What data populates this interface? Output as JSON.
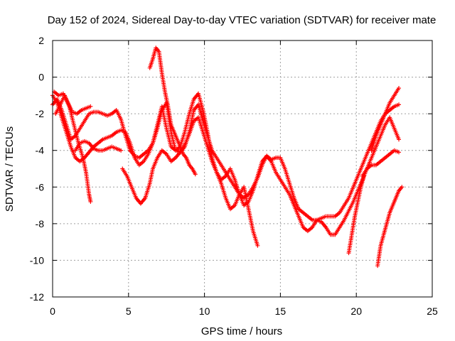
{
  "chart_data": {
    "type": "scatter",
    "title": "Day 152 of 2024, Sidereal Day-to-day VTEC variation (SDTVAR) for receiver mate",
    "xlabel": "GPS time / hours",
    "ylabel": "SDTVAR / TECUs",
    "xlim": [
      0,
      25
    ],
    "ylim": [
      -12,
      2
    ],
    "xticks": [
      0,
      5,
      10,
      15,
      20,
      25
    ],
    "yticks": [
      2,
      0,
      -2,
      -4,
      -6,
      -8,
      -10,
      -12
    ],
    "xtick_labels": [
      "0",
      "5",
      "10",
      "15",
      "20",
      "25"
    ],
    "ytick_labels": [
      "2",
      "0",
      "-2",
      "-4",
      "-6",
      "-8",
      "-10",
      "-12"
    ],
    "grid": true,
    "marker": "+",
    "color": "#ff0000",
    "series": [
      {
        "name": "track-1",
        "points": [
          [
            0.0,
            -1.5
          ],
          [
            0.3,
            -1.2
          ],
          [
            0.6,
            -1.8
          ],
          [
            0.9,
            -2.6
          ],
          [
            1.2,
            -3.4
          ],
          [
            1.5,
            -3.2
          ],
          [
            1.8,
            -2.8
          ],
          [
            2.1,
            -2.4
          ],
          [
            2.4,
            -2.0
          ],
          [
            2.7,
            -1.9
          ],
          [
            3.0,
            -1.9
          ],
          [
            3.3,
            -2.0
          ],
          [
            3.6,
            -2.1
          ],
          [
            3.9,
            -2.0
          ],
          [
            4.2,
            -1.8
          ],
          [
            4.5,
            -2.3
          ],
          [
            4.8,
            -3.2
          ],
          [
            5.1,
            -4.0
          ],
          [
            5.4,
            -4.3
          ],
          [
            5.7,
            -4.4
          ],
          [
            6.0,
            -4.2
          ],
          [
            6.3,
            -4.0
          ],
          [
            6.6,
            -3.6
          ],
          [
            6.9,
            -2.6
          ],
          [
            7.2,
            -1.6
          ],
          [
            7.5,
            -2.8
          ],
          [
            7.8,
            -3.8
          ],
          [
            8.1,
            -4.0
          ],
          [
            8.4,
            -4.1
          ],
          [
            8.7,
            -3.8
          ],
          [
            9.0,
            -3.0
          ],
          [
            9.3,
            -1.8
          ],
          [
            9.6,
            -1.5
          ],
          [
            9.9,
            -2.4
          ],
          [
            10.2,
            -3.2
          ],
          [
            10.5,
            -4.0
          ],
          [
            10.8,
            -4.4
          ],
          [
            11.1,
            -4.8
          ],
          [
            11.4,
            -5.2
          ],
          [
            11.7,
            -5.6
          ],
          [
            12.0,
            -6.0
          ],
          [
            12.3,
            -6.4
          ],
          [
            12.6,
            -6.6
          ],
          [
            12.9,
            -6.4
          ],
          [
            13.2,
            -6.0
          ],
          [
            13.5,
            -5.5
          ],
          [
            13.8,
            -4.8
          ],
          [
            14.1,
            -4.3
          ],
          [
            14.4,
            -4.5
          ],
          [
            14.7,
            -4.4
          ],
          [
            15.0,
            -4.4
          ],
          [
            15.3,
            -5.0
          ],
          [
            15.6,
            -5.8
          ],
          [
            15.9,
            -6.6
          ],
          [
            16.2,
            -7.2
          ],
          [
            16.5,
            -7.4
          ],
          [
            16.8,
            -7.6
          ],
          [
            17.1,
            -7.8
          ],
          [
            17.4,
            -7.8
          ],
          [
            17.7,
            -7.7
          ],
          [
            18.0,
            -7.6
          ],
          [
            18.3,
            -7.6
          ],
          [
            18.6,
            -7.6
          ],
          [
            18.9,
            -7.4
          ],
          [
            19.2,
            -7.0
          ],
          [
            19.5,
            -6.6
          ],
          [
            19.8,
            -6.0
          ],
          [
            20.1,
            -5.4
          ],
          [
            20.4,
            -4.8
          ],
          [
            20.7,
            -4.2
          ],
          [
            21.0,
            -3.6
          ],
          [
            21.3,
            -3.0
          ],
          [
            21.6,
            -2.4
          ],
          [
            21.9,
            -2.0
          ],
          [
            22.2,
            -1.8
          ],
          [
            22.5,
            -1.6
          ],
          [
            22.8,
            -1.5
          ]
        ]
      },
      {
        "name": "track-2",
        "points": [
          [
            0.0,
            -1.0
          ],
          [
            0.3,
            -1.4
          ],
          [
            0.6,
            -2.2
          ],
          [
            0.9,
            -3.0
          ],
          [
            1.2,
            -3.8
          ],
          [
            1.5,
            -4.4
          ],
          [
            1.8,
            -4.6
          ],
          [
            2.1,
            -4.4
          ],
          [
            2.4,
            -4.1
          ],
          [
            2.7,
            -3.8
          ],
          [
            3.0,
            -3.6
          ],
          [
            3.3,
            -3.4
          ],
          [
            3.6,
            -3.3
          ],
          [
            3.9,
            -3.2
          ],
          [
            4.2,
            -3.0
          ],
          [
            4.5,
            -2.9
          ],
          [
            4.8,
            -3.0
          ],
          [
            5.1,
            -3.6
          ],
          [
            5.4,
            -4.4
          ],
          [
            5.7,
            -4.8
          ],
          [
            6.0,
            -4.6
          ],
          [
            6.3,
            -4.2
          ],
          [
            6.6,
            -3.6
          ],
          [
            6.9,
            -2.8
          ],
          [
            7.2,
            -1.8
          ],
          [
            7.5,
            -1.4
          ],
          [
            7.8,
            -3.0
          ],
          [
            8.1,
            -4.0
          ],
          [
            8.4,
            -3.8
          ],
          [
            8.7,
            -3.0
          ],
          [
            9.0,
            -2.0
          ],
          [
            9.3,
            -1.2
          ],
          [
            9.6,
            -0.9
          ],
          [
            9.9,
            -1.8
          ],
          [
            10.2,
            -3.0
          ],
          [
            10.5,
            -4.4
          ],
          [
            10.8,
            -5.2
          ],
          [
            11.1,
            -5.6
          ],
          [
            11.4,
            -5.4
          ],
          [
            11.7,
            -5.0
          ],
          [
            12.0,
            -5.6
          ],
          [
            12.3,
            -6.4
          ],
          [
            12.6,
            -7.0
          ],
          [
            12.9,
            -6.8
          ],
          [
            13.2,
            -6.2
          ],
          [
            13.5,
            -5.4
          ],
          [
            13.8,
            -4.6
          ],
          [
            14.1,
            -4.3
          ],
          [
            14.4,
            -4.6
          ],
          [
            14.7,
            -5.2
          ],
          [
            15.0,
            -5.6
          ],
          [
            15.3,
            -6.0
          ],
          [
            15.6,
            -6.4
          ],
          [
            15.9,
            -7.0
          ],
          [
            16.2,
            -7.6
          ],
          [
            16.5,
            -8.2
          ],
          [
            16.8,
            -8.4
          ],
          [
            17.1,
            -8.2
          ],
          [
            17.4,
            -7.8
          ],
          [
            17.7,
            -7.9
          ],
          [
            18.0,
            -8.2
          ],
          [
            18.3,
            -8.6
          ],
          [
            18.6,
            -8.6
          ],
          [
            18.9,
            -8.2
          ],
          [
            19.2,
            -7.8
          ],
          [
            19.5,
            -7.3
          ],
          [
            19.8,
            -6.8
          ],
          [
            20.1,
            -6.2
          ],
          [
            20.4,
            -5.6
          ],
          [
            20.7,
            -5.0
          ],
          [
            21.0,
            -4.4
          ],
          [
            21.3,
            -3.8
          ],
          [
            21.6,
            -3.2
          ],
          [
            21.9,
            -2.6
          ],
          [
            22.2,
            -2.2
          ],
          [
            22.5,
            -2.8
          ],
          [
            22.8,
            -3.4
          ]
        ]
      },
      {
        "name": "track-3",
        "points": [
          [
            0.2,
            -2.0
          ],
          [
            0.5,
            -1.5
          ],
          [
            0.8,
            -1.0
          ],
          [
            1.1,
            -1.6
          ],
          [
            1.4,
            -2.6
          ],
          [
            1.7,
            -3.6
          ],
          [
            2.0,
            -4.4
          ],
          [
            2.2,
            -5.2
          ],
          [
            2.4,
            -6.4
          ],
          [
            2.5,
            -6.8
          ],
          [
            4.6,
            -5.0
          ],
          [
            4.9,
            -5.4
          ],
          [
            5.2,
            -6.0
          ],
          [
            5.5,
            -6.6
          ],
          [
            5.8,
            -6.9
          ],
          [
            6.1,
            -6.6
          ],
          [
            6.4,
            -5.8
          ],
          [
            6.6,
            -5.0
          ],
          [
            6.9,
            -4.4
          ],
          [
            7.2,
            -4.0
          ],
          [
            7.5,
            -4.2
          ],
          [
            7.8,
            -4.6
          ],
          [
            8.1,
            -4.4
          ],
          [
            8.4,
            -4.1
          ],
          [
            8.7,
            -3.7
          ],
          [
            9.0,
            -3.1
          ],
          [
            9.3,
            -2.4
          ],
          [
            9.6,
            -2.2
          ],
          [
            9.9,
            -3.0
          ],
          [
            10.2,
            -3.8
          ],
          [
            10.5,
            -4.6
          ],
          [
            10.8,
            -5.2
          ],
          [
            11.1,
            -5.8
          ],
          [
            11.4,
            -6.6
          ],
          [
            11.7,
            -7.2
          ],
          [
            12.0,
            -7.0
          ],
          [
            12.3,
            -6.4
          ],
          [
            12.6,
            -6.0
          ],
          [
            12.8,
            -6.8
          ],
          [
            13.0,
            -7.6
          ],
          [
            13.2,
            -8.4
          ],
          [
            13.5,
            -9.2
          ]
        ]
      },
      {
        "name": "track-4",
        "points": [
          [
            6.4,
            0.5
          ],
          [
            6.6,
            1.0
          ],
          [
            6.8,
            1.6
          ],
          [
            7.0,
            1.4
          ],
          [
            7.2,
            0.2
          ],
          [
            7.4,
            -0.8
          ],
          [
            7.6,
            -1.6
          ],
          [
            7.8,
            -2.6
          ],
          [
            8.0,
            -3.0
          ],
          [
            8.2,
            -3.4
          ],
          [
            8.4,
            -3.8
          ],
          [
            8.6,
            -4.2
          ],
          [
            8.8,
            -4.4
          ],
          [
            9.0,
            -4.8
          ],
          [
            9.2,
            -5.0
          ],
          [
            9.4,
            -5.3
          ]
        ]
      },
      {
        "name": "track-5",
        "points": [
          [
            1.5,
            -4.0
          ],
          [
            1.8,
            -3.6
          ],
          [
            2.1,
            -3.5
          ],
          [
            2.4,
            -3.6
          ],
          [
            2.7,
            -3.9
          ],
          [
            3.0,
            -4.0
          ],
          [
            3.3,
            -4.0
          ],
          [
            3.6,
            -3.9
          ],
          [
            3.9,
            -3.8
          ],
          [
            4.2,
            -3.9
          ],
          [
            4.5,
            -4.0
          ],
          [
            20.4,
            -5.4
          ],
          [
            20.7,
            -5.0
          ],
          [
            21.0,
            -4.8
          ],
          [
            21.3,
            -4.8
          ],
          [
            21.6,
            -4.6
          ],
          [
            21.9,
            -4.4
          ],
          [
            22.2,
            -4.2
          ],
          [
            22.5,
            -4.0
          ],
          [
            22.8,
            -4.1
          ]
        ]
      },
      {
        "name": "track-6",
        "points": [
          [
            19.5,
            -9.6
          ],
          [
            19.7,
            -8.6
          ],
          [
            19.9,
            -7.6
          ],
          [
            20.1,
            -6.8
          ],
          [
            20.3,
            -6.0
          ],
          [
            20.5,
            -5.4
          ],
          [
            21.4,
            -10.3
          ],
          [
            21.6,
            -9.2
          ],
          [
            21.8,
            -8.6
          ],
          [
            22.0,
            -8.0
          ],
          [
            22.2,
            -7.4
          ],
          [
            22.4,
            -7.0
          ],
          [
            22.6,
            -6.6
          ],
          [
            22.8,
            -6.2
          ],
          [
            23.0,
            -6.0
          ]
        ]
      },
      {
        "name": "track-7",
        "points": [
          [
            0.1,
            -0.8
          ],
          [
            0.4,
            -1.0
          ],
          [
            0.7,
            -0.9
          ],
          [
            1.0,
            -1.4
          ],
          [
            1.3,
            -1.9
          ],
          [
            1.6,
            -2.0
          ],
          [
            1.9,
            -1.8
          ],
          [
            2.2,
            -1.7
          ],
          [
            2.5,
            -1.6
          ],
          [
            21.0,
            -4.0
          ],
          [
            21.3,
            -3.2
          ],
          [
            21.6,
            -2.6
          ],
          [
            21.9,
            -2.0
          ],
          [
            22.2,
            -1.4
          ],
          [
            22.5,
            -1.0
          ],
          [
            22.8,
            -0.6
          ]
        ]
      }
    ]
  }
}
